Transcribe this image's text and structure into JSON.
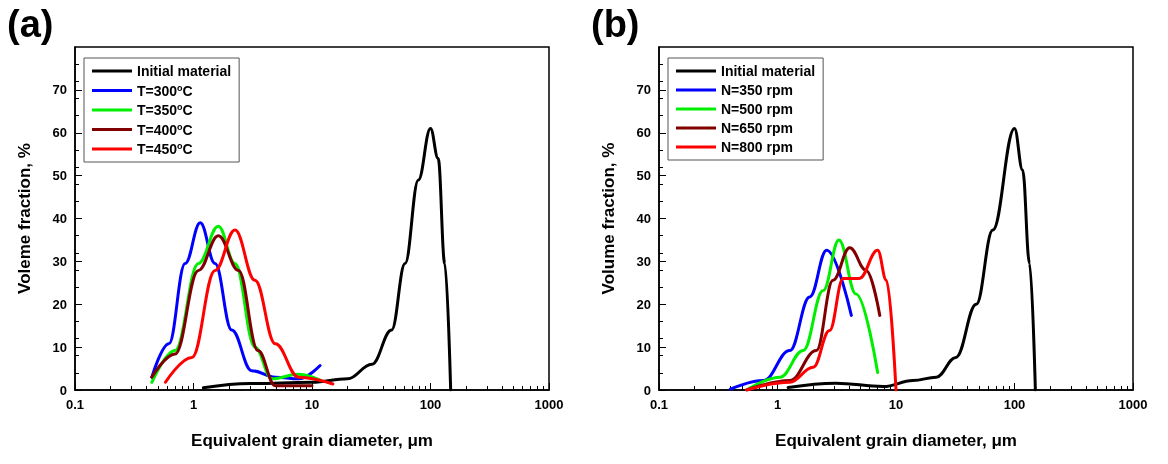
{
  "chart_data": [
    {
      "type": "line",
      "title": "(a)",
      "xlabel": "Equivalent grain diameter, μm",
      "ylabel": "Voleme fraction, %",
      "log": "x",
      "xlim": [
        0.1,
        1000
      ],
      "xticks": [
        0.1,
        1,
        10,
        100,
        1000
      ],
      "ylim": [
        0,
        80
      ],
      "yticks": [
        0,
        10,
        20,
        30,
        40,
        50,
        60,
        70
      ],
      "legend": "top left",
      "grid": false,
      "marker": "none",
      "line_style": "solid",
      "series": [
        {
          "name": "Initial material",
          "color": "#000000",
          "x": [
            1.21,
            3,
            10,
            20,
            32,
            47,
            61,
            79,
            100,
            116,
            132,
            148
          ],
          "values": [
            0.5,
            1.5,
            1.8,
            2.6,
            6,
            14,
            29.5,
            49,
            61,
            54,
            29.5,
            0
          ]
        },
        {
          "name": "T=300$^{o}$C",
          "color": "#0000ff",
          "x": [
            0.445,
            0.62,
            0.85,
            1.14,
            1.52,
            2.1,
            3.1,
            4.9,
            7.7,
            11.7
          ],
          "values": [
            3,
            10.8,
            29.5,
            39,
            29.5,
            14,
            4.5,
            3,
            2.6,
            5.7
          ]
        },
        {
          "name": "T=350$^{o}$C",
          "color": "#00ee00",
          "x": [
            0.445,
            0.7,
            1.1,
            1.62,
            2.24,
            3.3,
            4.6,
            7.7,
            12
          ],
          "values": [
            1.8,
            9.2,
            29.5,
            38.2,
            29.5,
            10,
            2.6,
            3.7,
            2.2
          ]
        },
        {
          "name": "T=400$^{o}$C",
          "color": "#800000",
          "x": [
            0.445,
            0.7,
            1.1,
            1.62,
            2.4,
            3.5,
            4.9,
            10
          ],
          "values": [
            3,
            8.4,
            27.9,
            36,
            27.9,
            9.2,
            1,
            1
          ]
        },
        {
          "name": "T=450$^{o}$C",
          "color": "#ff0000",
          "x": [
            0.58,
            0.97,
            1.52,
            2.24,
            3.3,
            4.9,
            7.7,
            15
          ],
          "values": [
            1.8,
            7.6,
            27.9,
            37.3,
            25.6,
            10.8,
            3,
            1.4
          ]
        }
      ]
    },
    {
      "type": "line",
      "title": "(b)",
      "xlabel": "Equivalent grain diameter, μm",
      "ylabel": "Volume fraction, %",
      "log": "x",
      "xlim": [
        0.1,
        1000
      ],
      "xticks": [
        0.1,
        1,
        10,
        100,
        1000
      ],
      "ylim": [
        0,
        80
      ],
      "yticks": [
        0,
        10,
        20,
        30,
        40,
        50,
        60,
        70
      ],
      "legend": "top left",
      "grid": false,
      "marker": "none",
      "line_style": "solid",
      "series": [
        {
          "name": "Initial material",
          "color": "#000000",
          "x": [
            1.23,
            3.1,
            7.8,
            13.9,
            21.9,
            32,
            47.6,
            65.6,
            100,
            117,
            134,
            150
          ],
          "values": [
            0.6,
            1.6,
            0.8,
            2.2,
            3,
            7.6,
            20,
            37.3,
            61,
            51.3,
            29.5,
            0
          ]
        },
        {
          "name": "N=350 rpm",
          "color": "#0000ff",
          "x": [
            0.4,
            0.76,
            1.27,
            1.87,
            2.6,
            4.2
          ],
          "values": [
            0.2,
            2.2,
            9.2,
            21.7,
            32.6,
            17.4
          ]
        },
        {
          "name": "N=500 rpm",
          "color": "#00ee00",
          "x": [
            0.55,
            1.05,
            1.65,
            2.43,
            3.3,
            4.6,
            7
          ],
          "values": [
            0,
            3,
            9.2,
            23.2,
            35,
            22.4,
            4.1
          ]
        },
        {
          "name": "N=650 rpm",
          "color": "#800000",
          "x": [
            0.55,
            1.27,
            2.13,
            2.94,
            4.07,
            5.6,
            7.3
          ],
          "values": [
            0,
            2.2,
            9.2,
            25.6,
            33.2,
            27.9,
            17.4
          ]
        },
        {
          "name": "N=800 rpm",
          "color": "#ff0000",
          "x": [
            0.55,
            1.27,
            2,
            2.75,
            3.58,
            4.9,
            7,
            8.3,
            10
          ],
          "values": [
            0,
            1.8,
            5.3,
            13.9,
            26,
            26,
            32.6,
            25.6,
            0
          ]
        }
      ]
    }
  ]
}
